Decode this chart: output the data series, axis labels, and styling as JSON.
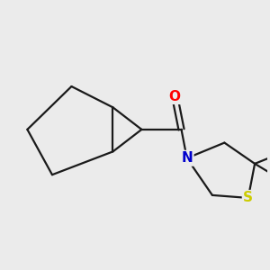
{
  "bg_color": "#ebebeb",
  "bond_color": "#1a1a1a",
  "O_color": "#ff0000",
  "N_color": "#0000cc",
  "S_color": "#cccc00",
  "O_label": "O",
  "N_label": "N",
  "S_label": "S",
  "font_size": 11,
  "linewidth": 1.6
}
